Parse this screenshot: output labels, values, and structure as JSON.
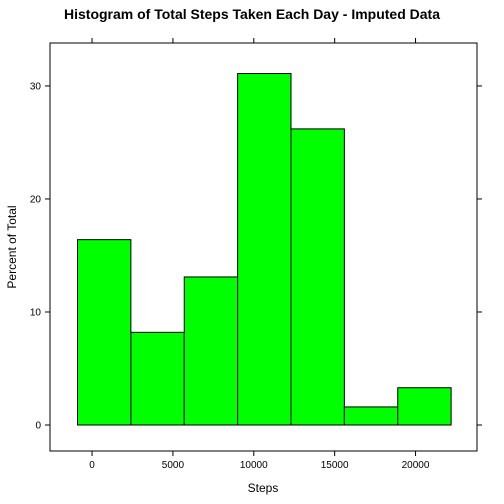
{
  "chart_data": {
    "type": "bar",
    "title": "Histogram of Total Steps Taken Each Day - Imputed Data",
    "xlabel": "Steps",
    "ylabel": "Percent of Total",
    "bar_color": "#00ff00",
    "bar_stroke": "#000000",
    "xlim": [
      -2600,
      23800
    ],
    "ylim": [
      -2.3,
      33.8
    ],
    "x_ticks": [
      0,
      5000,
      10000,
      15000,
      20000
    ],
    "y_ticks": [
      0,
      10,
      20,
      30
    ],
    "bins": [
      {
        "x0": -900,
        "x1": 2400,
        "value": 16.4
      },
      {
        "x0": 2400,
        "x1": 5700,
        "value": 8.2
      },
      {
        "x0": 5700,
        "x1": 9000,
        "value": 13.1
      },
      {
        "x0": 9000,
        "x1": 12300,
        "value": 31.1
      },
      {
        "x0": 12300,
        "x1": 15600,
        "value": 26.2
      },
      {
        "x0": 15600,
        "x1": 18900,
        "value": 1.6
      },
      {
        "x0": 18900,
        "x1": 22200,
        "value": 3.3
      }
    ],
    "grid": false,
    "legend": "none"
  }
}
